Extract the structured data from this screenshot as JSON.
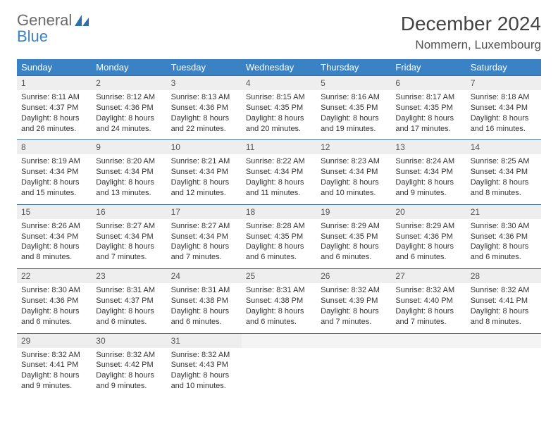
{
  "brand": {
    "part1": "General",
    "part2": "Blue"
  },
  "title": "December 2024",
  "location": "Nommern, Luxembourg",
  "colors": {
    "header_bg": "#3b82c4",
    "header_text": "#ffffff",
    "daynum_bg": "#eeeeee",
    "row_border": "#3b6fa0",
    "page_bg": "#ffffff",
    "text": "#333333"
  },
  "typography": {
    "title_fontsize": 28,
    "location_fontsize": 17,
    "weekday_fontsize": 13,
    "daynum_fontsize": 12,
    "cell_fontsize": 11
  },
  "weekdays": [
    "Sunday",
    "Monday",
    "Tuesday",
    "Wednesday",
    "Thursday",
    "Friday",
    "Saturday"
  ],
  "weeks": [
    [
      {
        "n": "1",
        "sunrise": "8:11 AM",
        "sunset": "4:37 PM",
        "daylight": "8 hours and 26 minutes."
      },
      {
        "n": "2",
        "sunrise": "8:12 AM",
        "sunset": "4:36 PM",
        "daylight": "8 hours and 24 minutes."
      },
      {
        "n": "3",
        "sunrise": "8:13 AM",
        "sunset": "4:36 PM",
        "daylight": "8 hours and 22 minutes."
      },
      {
        "n": "4",
        "sunrise": "8:15 AM",
        "sunset": "4:35 PM",
        "daylight": "8 hours and 20 minutes."
      },
      {
        "n": "5",
        "sunrise": "8:16 AM",
        "sunset": "4:35 PM",
        "daylight": "8 hours and 19 minutes."
      },
      {
        "n": "6",
        "sunrise": "8:17 AM",
        "sunset": "4:35 PM",
        "daylight": "8 hours and 17 minutes."
      },
      {
        "n": "7",
        "sunrise": "8:18 AM",
        "sunset": "4:34 PM",
        "daylight": "8 hours and 16 minutes."
      }
    ],
    [
      {
        "n": "8",
        "sunrise": "8:19 AM",
        "sunset": "4:34 PM",
        "daylight": "8 hours and 15 minutes."
      },
      {
        "n": "9",
        "sunrise": "8:20 AM",
        "sunset": "4:34 PM",
        "daylight": "8 hours and 13 minutes."
      },
      {
        "n": "10",
        "sunrise": "8:21 AM",
        "sunset": "4:34 PM",
        "daylight": "8 hours and 12 minutes."
      },
      {
        "n": "11",
        "sunrise": "8:22 AM",
        "sunset": "4:34 PM",
        "daylight": "8 hours and 11 minutes."
      },
      {
        "n": "12",
        "sunrise": "8:23 AM",
        "sunset": "4:34 PM",
        "daylight": "8 hours and 10 minutes."
      },
      {
        "n": "13",
        "sunrise": "8:24 AM",
        "sunset": "4:34 PM",
        "daylight": "8 hours and 9 minutes."
      },
      {
        "n": "14",
        "sunrise": "8:25 AM",
        "sunset": "4:34 PM",
        "daylight": "8 hours and 8 minutes."
      }
    ],
    [
      {
        "n": "15",
        "sunrise": "8:26 AM",
        "sunset": "4:34 PM",
        "daylight": "8 hours and 8 minutes."
      },
      {
        "n": "16",
        "sunrise": "8:27 AM",
        "sunset": "4:34 PM",
        "daylight": "8 hours and 7 minutes."
      },
      {
        "n": "17",
        "sunrise": "8:27 AM",
        "sunset": "4:34 PM",
        "daylight": "8 hours and 7 minutes."
      },
      {
        "n": "18",
        "sunrise": "8:28 AM",
        "sunset": "4:35 PM",
        "daylight": "8 hours and 6 minutes."
      },
      {
        "n": "19",
        "sunrise": "8:29 AM",
        "sunset": "4:35 PM",
        "daylight": "8 hours and 6 minutes."
      },
      {
        "n": "20",
        "sunrise": "8:29 AM",
        "sunset": "4:36 PM",
        "daylight": "8 hours and 6 minutes."
      },
      {
        "n": "21",
        "sunrise": "8:30 AM",
        "sunset": "4:36 PM",
        "daylight": "8 hours and 6 minutes."
      }
    ],
    [
      {
        "n": "22",
        "sunrise": "8:30 AM",
        "sunset": "4:36 PM",
        "daylight": "8 hours and 6 minutes."
      },
      {
        "n": "23",
        "sunrise": "8:31 AM",
        "sunset": "4:37 PM",
        "daylight": "8 hours and 6 minutes."
      },
      {
        "n": "24",
        "sunrise": "8:31 AM",
        "sunset": "4:38 PM",
        "daylight": "8 hours and 6 minutes."
      },
      {
        "n": "25",
        "sunrise": "8:31 AM",
        "sunset": "4:38 PM",
        "daylight": "8 hours and 6 minutes."
      },
      {
        "n": "26",
        "sunrise": "8:32 AM",
        "sunset": "4:39 PM",
        "daylight": "8 hours and 7 minutes."
      },
      {
        "n": "27",
        "sunrise": "8:32 AM",
        "sunset": "4:40 PM",
        "daylight": "8 hours and 7 minutes."
      },
      {
        "n": "28",
        "sunrise": "8:32 AM",
        "sunset": "4:41 PM",
        "daylight": "8 hours and 8 minutes."
      }
    ],
    [
      {
        "n": "29",
        "sunrise": "8:32 AM",
        "sunset": "4:41 PM",
        "daylight": "8 hours and 9 minutes."
      },
      {
        "n": "30",
        "sunrise": "8:32 AM",
        "sunset": "4:42 PM",
        "daylight": "8 hours and 9 minutes."
      },
      {
        "n": "31",
        "sunrise": "8:32 AM",
        "sunset": "4:43 PM",
        "daylight": "8 hours and 10 minutes."
      },
      null,
      null,
      null,
      null
    ]
  ],
  "labels": {
    "sunrise": "Sunrise: ",
    "sunset": "Sunset: ",
    "daylight": "Daylight: "
  }
}
